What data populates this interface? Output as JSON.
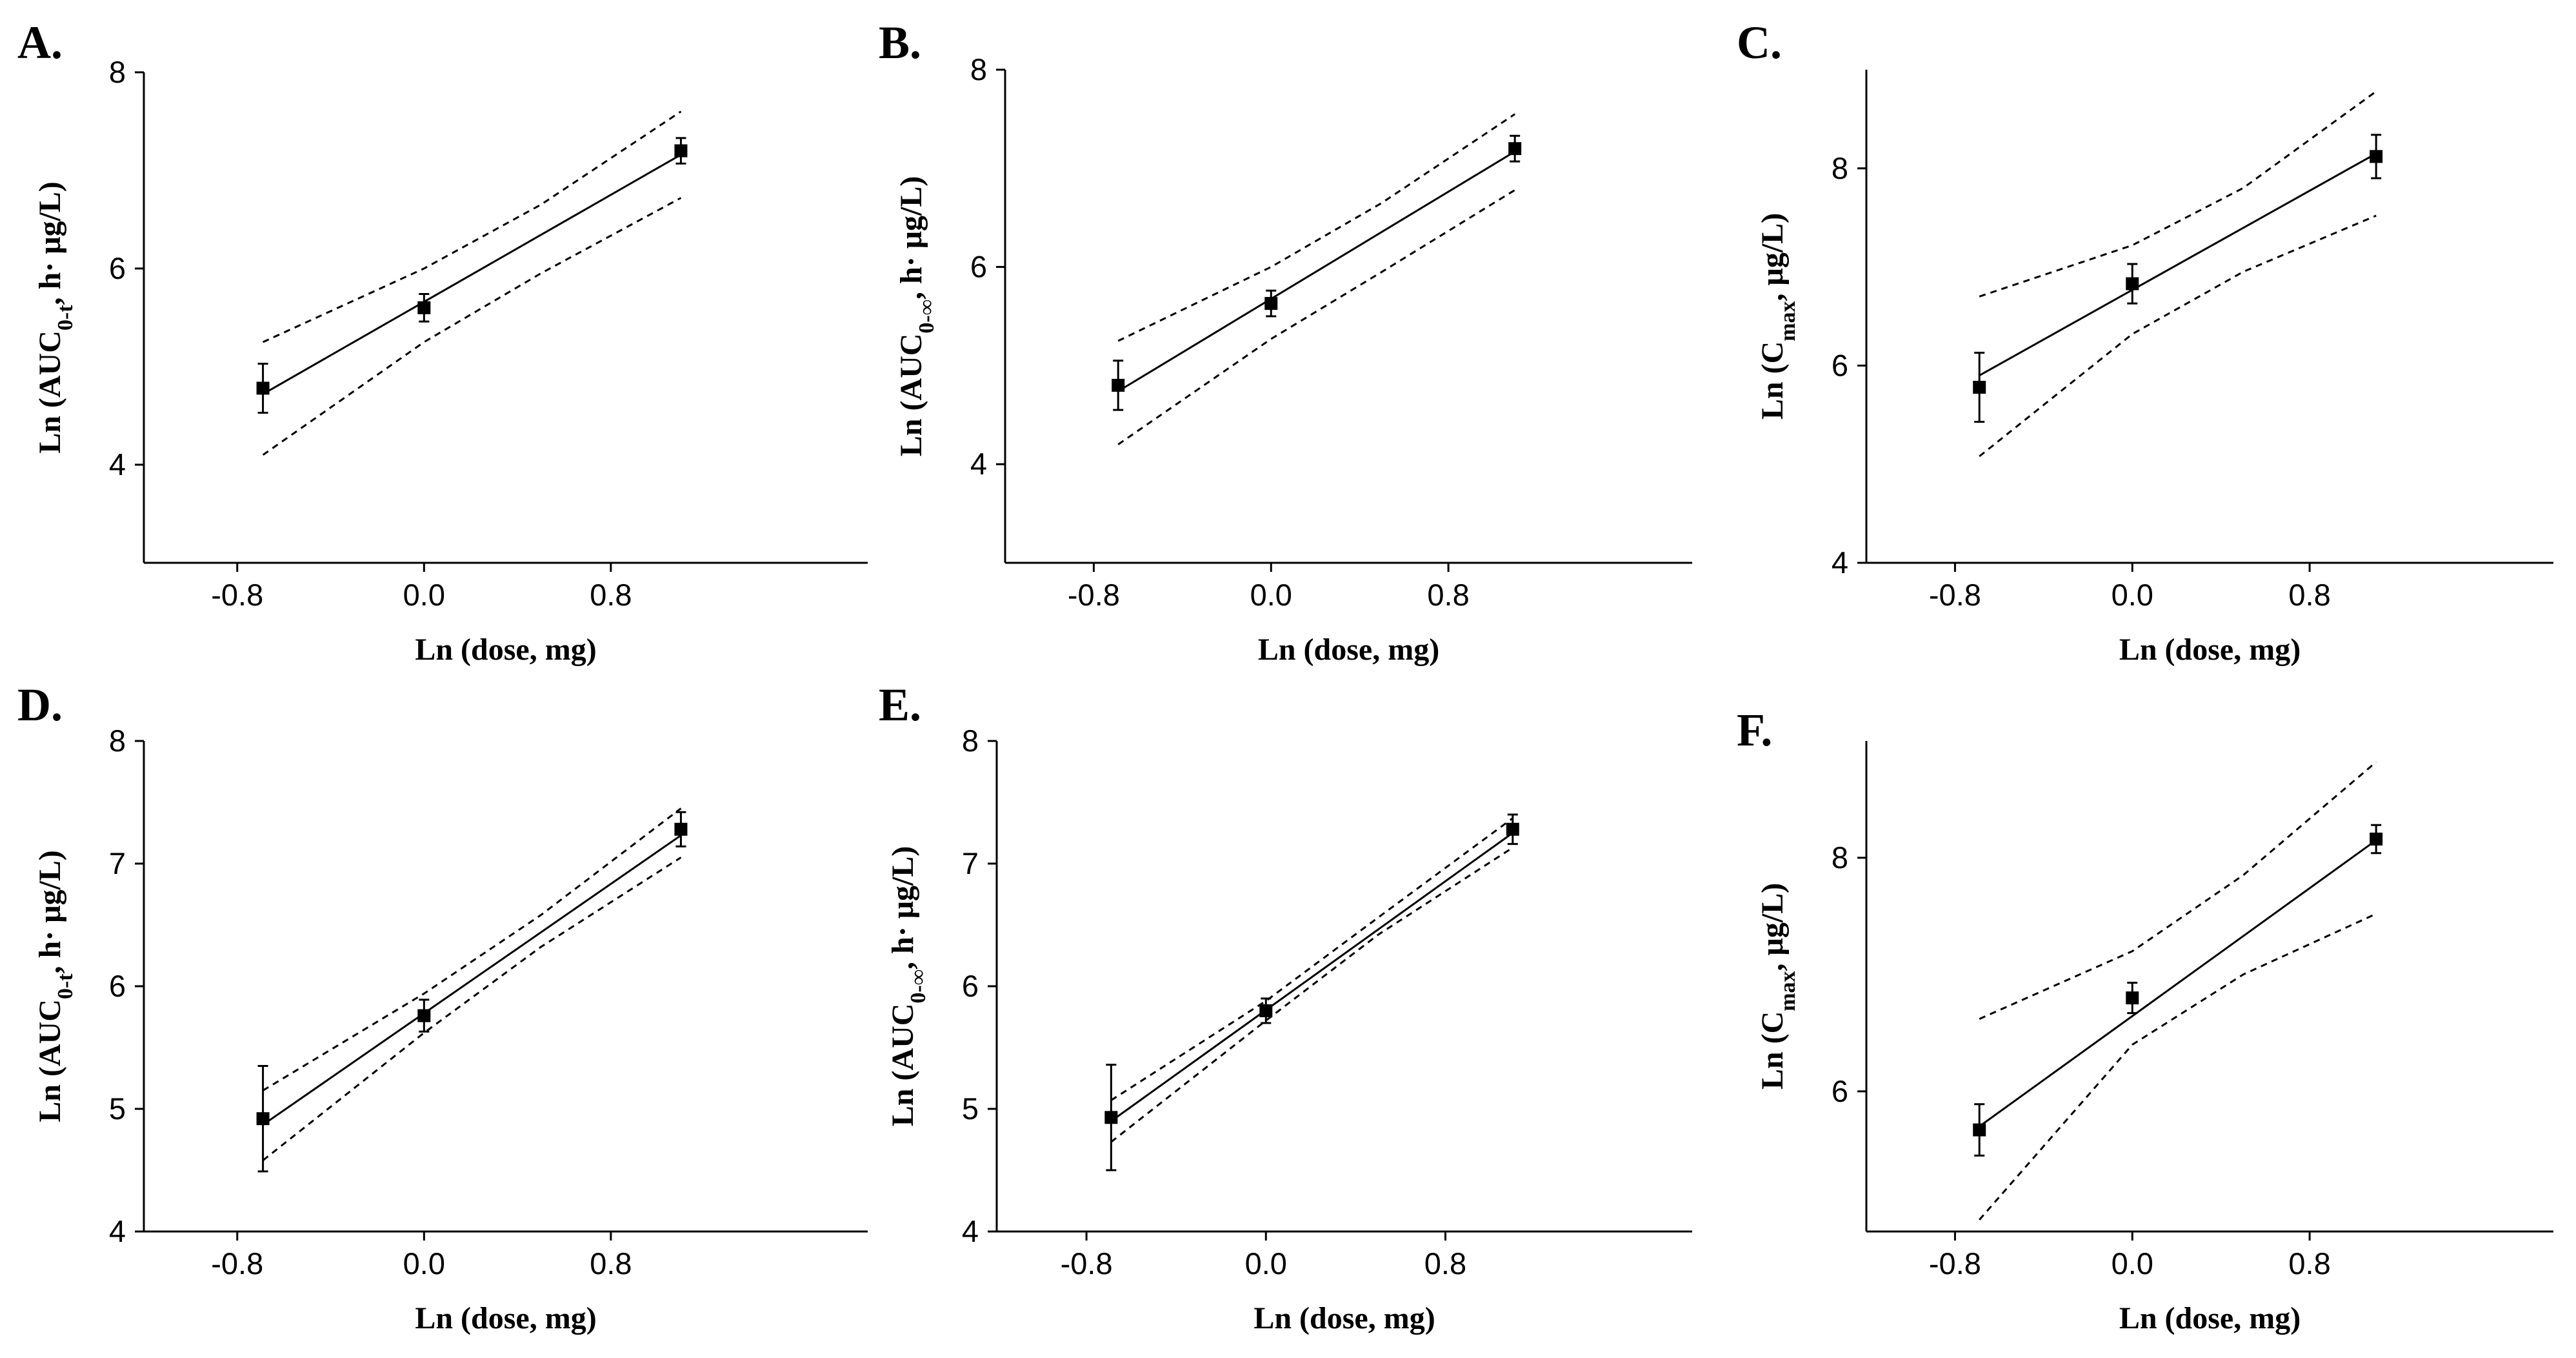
{
  "figure": {
    "panels": [
      {
        "id": "A",
        "label": "A."
      },
      {
        "id": "B",
        "label": "B."
      },
      {
        "id": "C",
        "label": "C."
      },
      {
        "id": "D",
        "label": "D."
      },
      {
        "id": "E",
        "label": "E."
      },
      {
        "id": "F",
        "label": "F."
      }
    ]
  },
  "chart_data": [
    {
      "panel": "A",
      "type": "scatter",
      "title": "",
      "xlabel": "Ln (dose, mg)",
      "ylabel": {
        "main": "Ln (AUC",
        "sub": "0-t",
        "tail": ", h·  μg/L)"
      },
      "xlim": [
        -1.2,
        1.9
      ],
      "ylim": [
        3,
        8
      ],
      "xticks": [
        -0.8,
        0.0,
        0.8
      ],
      "xtick_labels": [
        "-0.8",
        "0.0",
        "0.8"
      ],
      "yticks": [
        4,
        6,
        8
      ],
      "ytick_labels": [
        "4",
        "6",
        "8"
      ],
      "points": [
        {
          "x": -0.69,
          "y": 4.78,
          "err": 0.25
        },
        {
          "x": 0.0,
          "y": 5.6,
          "err": 0.14
        },
        {
          "x": 1.1,
          "y": 7.2,
          "err": 0.13
        }
      ],
      "fit": {
        "x": [
          -0.69,
          1.1
        ],
        "y": [
          4.72,
          7.16
        ]
      },
      "ci_upper": {
        "x": [
          -0.69,
          0.0,
          0.5,
          1.1
        ],
        "y": [
          5.25,
          6.0,
          6.65,
          7.6
        ]
      },
      "ci_lower": {
        "x": [
          -0.69,
          0.0,
          0.5,
          1.1
        ],
        "y": [
          4.1,
          5.25,
          5.95,
          6.72
        ]
      }
    },
    {
      "panel": "B",
      "type": "scatter",
      "title": "",
      "xlabel": "Ln (dose, mg)",
      "ylabel": {
        "main": "Ln (AUC",
        "sub": "0-∞",
        "tail": ", h·  μg/L)"
      },
      "xlim": [
        -1.2,
        1.9
      ],
      "ylim": [
        3,
        8
      ],
      "xticks": [
        -0.8,
        0.0,
        0.8
      ],
      "xtick_labels": [
        "-0.8",
        "0.0",
        "0.8"
      ],
      "yticks": [
        4,
        6,
        8
      ],
      "ytick_labels": [
        "4",
        "6",
        "8"
      ],
      "points": [
        {
          "x": -0.69,
          "y": 4.8,
          "err": 0.25
        },
        {
          "x": 0.0,
          "y": 5.63,
          "err": 0.13
        },
        {
          "x": 1.1,
          "y": 7.2,
          "err": 0.13
        }
      ],
      "fit": {
        "x": [
          -0.69,
          1.1
        ],
        "y": [
          4.74,
          7.17
        ]
      },
      "ci_upper": {
        "x": [
          -0.69,
          0.0,
          0.5,
          1.1
        ],
        "y": [
          5.25,
          6.0,
          6.65,
          7.55
        ]
      },
      "ci_lower": {
        "x": [
          -0.69,
          0.0,
          0.5,
          1.1
        ],
        "y": [
          4.2,
          5.27,
          5.95,
          6.78
        ]
      }
    },
    {
      "panel": "C",
      "type": "scatter",
      "title": "",
      "xlabel": "Ln (dose, mg)",
      "ylabel": {
        "main": "Ln (C",
        "sub": "max",
        "tail": ", μg/L)"
      },
      "xlim": [
        -1.2,
        1.9
      ],
      "ylim": [
        4,
        9
      ],
      "xticks": [
        -0.8,
        0.0,
        0.8
      ],
      "xtick_labels": [
        "-0.8",
        "0.0",
        "0.8"
      ],
      "yticks": [
        4,
        6,
        8
      ],
      "ytick_labels": [
        "4",
        "6",
        "8"
      ],
      "points": [
        {
          "x": -0.69,
          "y": 5.78,
          "err": 0.35
        },
        {
          "x": 0.0,
          "y": 6.83,
          "err": 0.2
        },
        {
          "x": 1.1,
          "y": 8.12,
          "err": 0.22
        }
      ],
      "fit": {
        "x": [
          -0.69,
          1.1
        ],
        "y": [
          5.9,
          8.15
        ]
      },
      "ci_upper": {
        "x": [
          -0.69,
          0.0,
          0.5,
          1.1
        ],
        "y": [
          6.7,
          7.22,
          7.8,
          8.78
        ]
      },
      "ci_lower": {
        "x": [
          -0.69,
          0.0,
          0.5,
          1.1
        ],
        "y": [
          5.08,
          6.32,
          6.95,
          7.52
        ]
      }
    },
    {
      "panel": "D",
      "type": "scatter",
      "title": "",
      "xlabel": "Ln (dose, mg)",
      "ylabel": {
        "main": "Ln (AUC",
        "sub": "0-t",
        "tail": ", h·  μg/L)"
      },
      "xlim": [
        -1.2,
        1.9
      ],
      "ylim": [
        4,
        8
      ],
      "xticks": [
        -0.8,
        0.0,
        0.8
      ],
      "xtick_labels": [
        "-0.8",
        "0.0",
        "0.8"
      ],
      "yticks": [
        4,
        5,
        6,
        7,
        8
      ],
      "ytick_labels": [
        "4",
        "5",
        "6",
        "7",
        "8"
      ],
      "points": [
        {
          "x": -0.69,
          "y": 4.92,
          "err": 0.43
        },
        {
          "x": 0.0,
          "y": 5.76,
          "err": 0.13
        },
        {
          "x": 1.1,
          "y": 7.28,
          "err": 0.14
        }
      ],
      "fit": {
        "x": [
          -0.69,
          1.1
        ],
        "y": [
          4.87,
          7.23
        ]
      },
      "ci_upper": {
        "x": [
          -0.69,
          0.0,
          0.5,
          1.1
        ],
        "y": [
          5.15,
          5.94,
          6.58,
          7.45
        ]
      },
      "ci_lower": {
        "x": [
          -0.69,
          0.0,
          0.5,
          1.1
        ],
        "y": [
          4.58,
          5.62,
          6.32,
          7.05
        ]
      }
    },
    {
      "panel": "E",
      "type": "scatter",
      "title": "",
      "xlabel": "Ln (dose, mg)",
      "ylabel": {
        "main": "Ln (AUC",
        "sub": "0-∞",
        "tail": ", h·  μg/L)"
      },
      "xlim": [
        -1.2,
        1.9
      ],
      "ylim": [
        4,
        8
      ],
      "xticks": [
        -0.8,
        0.0,
        0.8
      ],
      "xtick_labels": [
        "-0.8",
        "0.0",
        "0.8"
      ],
      "yticks": [
        4,
        5,
        6,
        7,
        8
      ],
      "ytick_labels": [
        "4",
        "5",
        "6",
        "7",
        "8"
      ],
      "points": [
        {
          "x": -0.69,
          "y": 4.93,
          "err": 0.43
        },
        {
          "x": 0.0,
          "y": 5.8,
          "err": 0.1
        },
        {
          "x": 1.1,
          "y": 7.28,
          "err": 0.12
        }
      ],
      "fit": {
        "x": [
          -0.69,
          1.1
        ],
        "y": [
          4.9,
          7.25
        ]
      },
      "ci_upper": {
        "x": [
          -0.69,
          0.0,
          0.5,
          1.1
        ],
        "y": [
          5.07,
          5.88,
          6.56,
          7.37
        ]
      },
      "ci_lower": {
        "x": [
          -0.69,
          0.0,
          0.5,
          1.1
        ],
        "y": [
          4.73,
          5.72,
          6.42,
          7.13
        ]
      }
    },
    {
      "panel": "F",
      "type": "scatter",
      "title": "",
      "xlabel": "Ln (dose, mg)",
      "ylabel": {
        "main": "Ln (C",
        "sub": "max",
        "tail": ", μg/L)"
      },
      "xlim": [
        -1.2,
        1.9
      ],
      "ylim": [
        4.8,
        9
      ],
      "xticks": [
        -0.8,
        0.0,
        0.8
      ],
      "xtick_labels": [
        "-0.8",
        "0.0",
        "0.8"
      ],
      "yticks": [
        6,
        8
      ],
      "ytick_labels": [
        "6",
        "8"
      ],
      "points": [
        {
          "x": -0.69,
          "y": 5.67,
          "err": 0.22
        },
        {
          "x": 0.0,
          "y": 6.8,
          "err": 0.13
        },
        {
          "x": 1.1,
          "y": 8.16,
          "err": 0.12
        }
      ],
      "fit": {
        "x": [
          -0.69,
          1.1
        ],
        "y": [
          5.7,
          8.15
        ]
      },
      "ci_upper": {
        "x": [
          -0.69,
          0.0,
          0.5,
          1.1
        ],
        "y": [
          6.62,
          7.2,
          7.85,
          8.82
        ]
      },
      "ci_lower": {
        "x": [
          -0.69,
          0.0,
          0.5,
          1.1
        ],
        "y": [
          4.9,
          6.4,
          7.0,
          7.52
        ]
      }
    }
  ]
}
